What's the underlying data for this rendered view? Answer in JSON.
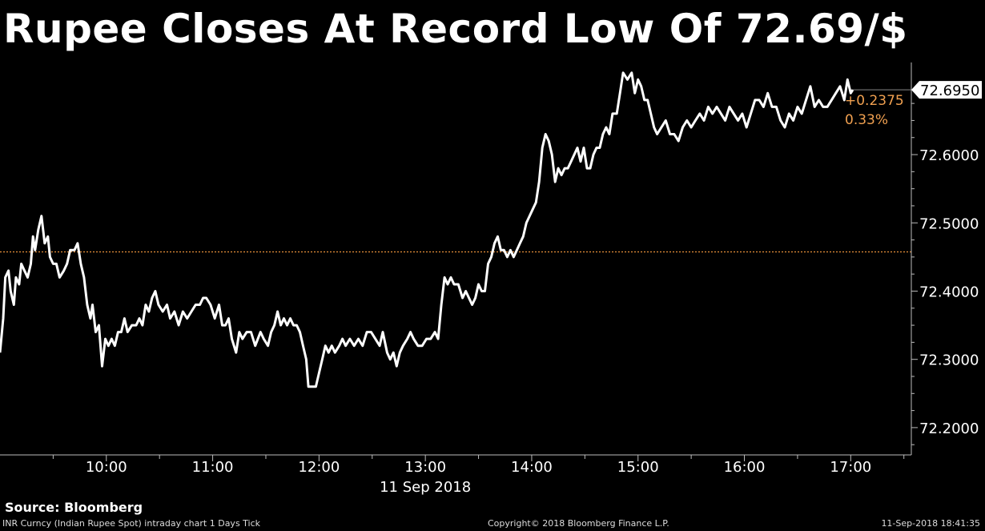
{
  "title": "Rupee Closes At Record Low Of 72.69/$",
  "source": "Source: Bloomberg",
  "footer": {
    "left": "INR Curncy (Indian Rupee Spot) intraday chart 1 Days  Tick",
    "middle": "Copyright© 2018 Bloomberg Finance L.P.",
    "right": "11-Sep-2018 18:41:35"
  },
  "colors": {
    "background": "#000000",
    "line": "#ffffff",
    "reference_line": "#e8913a",
    "change_text": "#f0a050"
  },
  "chart_data": {
    "type": "line",
    "title": "Rupee Closes At Record Low Of 72.69/$",
    "x_label": "11 Sep 2018",
    "x_ticks": [
      {
        "label": "10:00",
        "value": 10
      },
      {
        "label": "11:00",
        "value": 11
      },
      {
        "label": "12:00",
        "value": 12
      },
      {
        "label": "13:00",
        "value": 13
      },
      {
        "label": "14:00",
        "value": 14
      },
      {
        "label": "15:00",
        "value": 15
      },
      {
        "label": "16:00",
        "value": 16
      },
      {
        "label": "17:00",
        "value": 17
      }
    ],
    "y_ticks": [
      "72.2000",
      "72.3000",
      "72.4000",
      "72.5000",
      "72.6000"
    ],
    "y_tick_values": [
      72.2,
      72.3,
      72.4,
      72.5,
      72.6
    ],
    "ylim": [
      72.16,
      72.735
    ],
    "xlim": [
      9.0,
      17.57
    ],
    "reference_value": 72.4575,
    "last_value": "72.6950",
    "change": "+0.2375",
    "change_pct": "0.33%",
    "grid": false,
    "series": [
      {
        "values": [
          [
            9.0,
            72.31
          ],
          [
            9.03,
            72.36
          ],
          [
            9.05,
            72.42
          ],
          [
            9.08,
            72.43
          ],
          [
            9.1,
            72.4
          ],
          [
            9.13,
            72.38
          ],
          [
            9.15,
            72.42
          ],
          [
            9.18,
            72.41
          ],
          [
            9.2,
            72.44
          ],
          [
            9.23,
            72.43
          ],
          [
            9.26,
            72.42
          ],
          [
            9.29,
            72.44
          ],
          [
            9.31,
            72.48
          ],
          [
            9.33,
            72.46
          ],
          [
            9.36,
            72.49
          ],
          [
            9.39,
            72.51
          ],
          [
            9.42,
            72.47
          ],
          [
            9.45,
            72.48
          ],
          [
            9.47,
            72.45
          ],
          [
            9.5,
            72.44
          ],
          [
            9.53,
            72.44
          ],
          [
            9.56,
            72.42
          ],
          [
            9.6,
            72.43
          ],
          [
            9.63,
            72.44
          ],
          [
            9.66,
            72.46
          ],
          [
            9.7,
            72.46
          ],
          [
            9.73,
            72.47
          ],
          [
            9.76,
            72.44
          ],
          [
            9.79,
            72.42
          ],
          [
            9.82,
            72.38
          ],
          [
            9.85,
            72.36
          ],
          [
            9.87,
            72.38
          ],
          [
            9.9,
            72.34
          ],
          [
            9.93,
            72.35
          ],
          [
            9.96,
            72.29
          ],
          [
            9.99,
            72.33
          ],
          [
            10.02,
            72.32
          ],
          [
            10.05,
            72.33
          ],
          [
            10.08,
            72.32
          ],
          [
            10.11,
            72.34
          ],
          [
            10.14,
            72.34
          ],
          [
            10.17,
            72.36
          ],
          [
            10.2,
            72.34
          ],
          [
            10.24,
            72.35
          ],
          [
            10.28,
            72.35
          ],
          [
            10.31,
            72.36
          ],
          [
            10.34,
            72.35
          ],
          [
            10.37,
            72.38
          ],
          [
            10.4,
            72.37
          ],
          [
            10.43,
            72.39
          ],
          [
            10.46,
            72.4
          ],
          [
            10.49,
            72.38
          ],
          [
            10.53,
            72.37
          ],
          [
            10.57,
            72.38
          ],
          [
            10.6,
            72.36
          ],
          [
            10.64,
            72.37
          ],
          [
            10.68,
            72.35
          ],
          [
            10.72,
            72.37
          ],
          [
            10.76,
            72.36
          ],
          [
            10.8,
            72.37
          ],
          [
            10.84,
            72.38
          ],
          [
            10.88,
            72.38
          ],
          [
            10.91,
            72.39
          ],
          [
            10.94,
            72.39
          ],
          [
            10.98,
            72.38
          ],
          [
            11.02,
            72.36
          ],
          [
            11.06,
            72.38
          ],
          [
            11.09,
            72.35
          ],
          [
            11.12,
            72.35
          ],
          [
            11.15,
            72.36
          ],
          [
            11.18,
            72.33
          ],
          [
            11.22,
            72.31
          ],
          [
            11.25,
            72.34
          ],
          [
            11.28,
            72.33
          ],
          [
            11.32,
            72.34
          ],
          [
            11.36,
            72.34
          ],
          [
            11.4,
            72.32
          ],
          [
            11.45,
            72.34
          ],
          [
            11.48,
            72.33
          ],
          [
            11.52,
            72.32
          ],
          [
            11.55,
            72.34
          ],
          [
            11.58,
            72.35
          ],
          [
            11.61,
            72.37
          ],
          [
            11.64,
            72.35
          ],
          [
            11.67,
            72.36
          ],
          [
            11.7,
            72.35
          ],
          [
            11.73,
            72.36
          ],
          [
            11.76,
            72.35
          ],
          [
            11.79,
            72.35
          ],
          [
            11.82,
            72.34
          ],
          [
            11.85,
            72.32
          ],
          [
            11.88,
            72.3
          ],
          [
            11.9,
            72.26
          ],
          [
            11.94,
            72.26
          ],
          [
            11.97,
            72.26
          ],
          [
            12.0,
            72.28
          ],
          [
            12.03,
            72.3
          ],
          [
            12.06,
            72.32
          ],
          [
            12.09,
            72.31
          ],
          [
            12.12,
            72.32
          ],
          [
            12.15,
            72.31
          ],
          [
            12.19,
            72.32
          ],
          [
            12.22,
            72.33
          ],
          [
            12.25,
            72.32
          ],
          [
            12.29,
            72.33
          ],
          [
            12.33,
            72.32
          ],
          [
            12.37,
            72.33
          ],
          [
            12.41,
            72.32
          ],
          [
            12.45,
            72.34
          ],
          [
            12.49,
            72.34
          ],
          [
            12.53,
            72.33
          ],
          [
            12.57,
            72.32
          ],
          [
            12.6,
            72.34
          ],
          [
            12.64,
            72.31
          ],
          [
            12.67,
            72.3
          ],
          [
            12.7,
            72.31
          ],
          [
            12.73,
            72.29
          ],
          [
            12.76,
            72.31
          ],
          [
            12.79,
            72.32
          ],
          [
            12.83,
            72.33
          ],
          [
            12.86,
            72.34
          ],
          [
            12.89,
            72.33
          ],
          [
            12.93,
            72.32
          ],
          [
            12.97,
            72.32
          ],
          [
            13.01,
            72.33
          ],
          [
            13.05,
            72.33
          ],
          [
            13.09,
            72.34
          ],
          [
            13.12,
            72.33
          ],
          [
            13.15,
            72.38
          ],
          [
            13.18,
            72.42
          ],
          [
            13.21,
            72.41
          ],
          [
            13.24,
            72.42
          ],
          [
            13.27,
            72.41
          ],
          [
            13.31,
            72.41
          ],
          [
            13.35,
            72.39
          ],
          [
            13.38,
            72.4
          ],
          [
            13.41,
            72.39
          ],
          [
            13.44,
            72.38
          ],
          [
            13.47,
            72.39
          ],
          [
            13.5,
            72.41
          ],
          [
            13.53,
            72.4
          ],
          [
            13.56,
            72.4
          ],
          [
            13.59,
            72.44
          ],
          [
            13.62,
            72.45
          ],
          [
            13.65,
            72.47
          ],
          [
            13.68,
            72.48
          ],
          [
            13.71,
            72.46
          ],
          [
            13.74,
            72.46
          ],
          [
            13.77,
            72.45
          ],
          [
            13.8,
            72.46
          ],
          [
            13.83,
            72.45
          ],
          [
            13.86,
            72.46
          ],
          [
            13.89,
            72.47
          ],
          [
            13.92,
            72.48
          ],
          [
            13.95,
            72.5
          ],
          [
            13.98,
            72.51
          ],
          [
            14.01,
            72.52
          ],
          [
            14.04,
            72.53
          ],
          [
            14.07,
            72.56
          ],
          [
            14.1,
            72.61
          ],
          [
            14.13,
            72.63
          ],
          [
            14.16,
            72.62
          ],
          [
            14.19,
            72.6
          ],
          [
            14.22,
            72.56
          ],
          [
            14.25,
            72.58
          ],
          [
            14.28,
            72.57
          ],
          [
            14.31,
            72.58
          ],
          [
            14.34,
            72.58
          ],
          [
            14.37,
            72.59
          ],
          [
            14.4,
            72.6
          ],
          [
            14.43,
            72.61
          ],
          [
            14.46,
            72.59
          ],
          [
            14.49,
            72.61
          ],
          [
            14.52,
            72.58
          ],
          [
            14.55,
            72.58
          ],
          [
            14.58,
            72.6
          ],
          [
            14.61,
            72.61
          ],
          [
            14.64,
            72.61
          ],
          [
            14.67,
            72.63
          ],
          [
            14.7,
            72.64
          ],
          [
            14.73,
            72.63
          ],
          [
            14.76,
            72.66
          ],
          [
            14.8,
            72.66
          ],
          [
            14.83,
            72.69
          ],
          [
            14.86,
            72.72
          ],
          [
            14.9,
            72.71
          ],
          [
            14.94,
            72.72
          ],
          [
            14.97,
            72.69
          ],
          [
            15.0,
            72.71
          ],
          [
            15.03,
            72.7
          ],
          [
            15.06,
            72.68
          ],
          [
            15.09,
            72.68
          ],
          [
            15.12,
            72.66
          ],
          [
            15.15,
            72.64
          ],
          [
            15.18,
            72.63
          ],
          [
            15.22,
            72.64
          ],
          [
            15.26,
            72.65
          ],
          [
            15.3,
            72.63
          ],
          [
            15.34,
            72.63
          ],
          [
            15.38,
            72.62
          ],
          [
            15.42,
            72.64
          ],
          [
            15.46,
            72.65
          ],
          [
            15.5,
            72.64
          ],
          [
            15.54,
            72.65
          ],
          [
            15.58,
            72.66
          ],
          [
            15.62,
            72.65
          ],
          [
            15.66,
            72.67
          ],
          [
            15.7,
            72.66
          ],
          [
            15.74,
            72.67
          ],
          [
            15.78,
            72.66
          ],
          [
            15.82,
            72.65
          ],
          [
            15.86,
            72.67
          ],
          [
            15.9,
            72.66
          ],
          [
            15.94,
            72.65
          ],
          [
            15.98,
            72.66
          ],
          [
            16.02,
            72.64
          ],
          [
            16.06,
            72.66
          ],
          [
            16.1,
            72.68
          ],
          [
            16.14,
            72.68
          ],
          [
            16.18,
            72.67
          ],
          [
            16.22,
            72.69
          ],
          [
            16.26,
            72.67
          ],
          [
            16.3,
            72.67
          ],
          [
            16.34,
            72.65
          ],
          [
            16.38,
            72.64
          ],
          [
            16.42,
            72.66
          ],
          [
            16.46,
            72.65
          ],
          [
            16.5,
            72.67
          ],
          [
            16.54,
            72.66
          ],
          [
            16.58,
            72.68
          ],
          [
            16.62,
            72.7
          ],
          [
            16.66,
            72.67
          ],
          [
            16.7,
            72.68
          ],
          [
            16.74,
            72.67
          ],
          [
            16.78,
            72.67
          ],
          [
            16.82,
            72.68
          ],
          [
            16.86,
            72.69
          ],
          [
            16.9,
            72.7
          ],
          [
            16.94,
            72.68
          ],
          [
            16.97,
            72.71
          ],
          [
            17.0,
            72.69
          ],
          [
            17.02,
            72.695
          ]
        ]
      }
    ]
  }
}
